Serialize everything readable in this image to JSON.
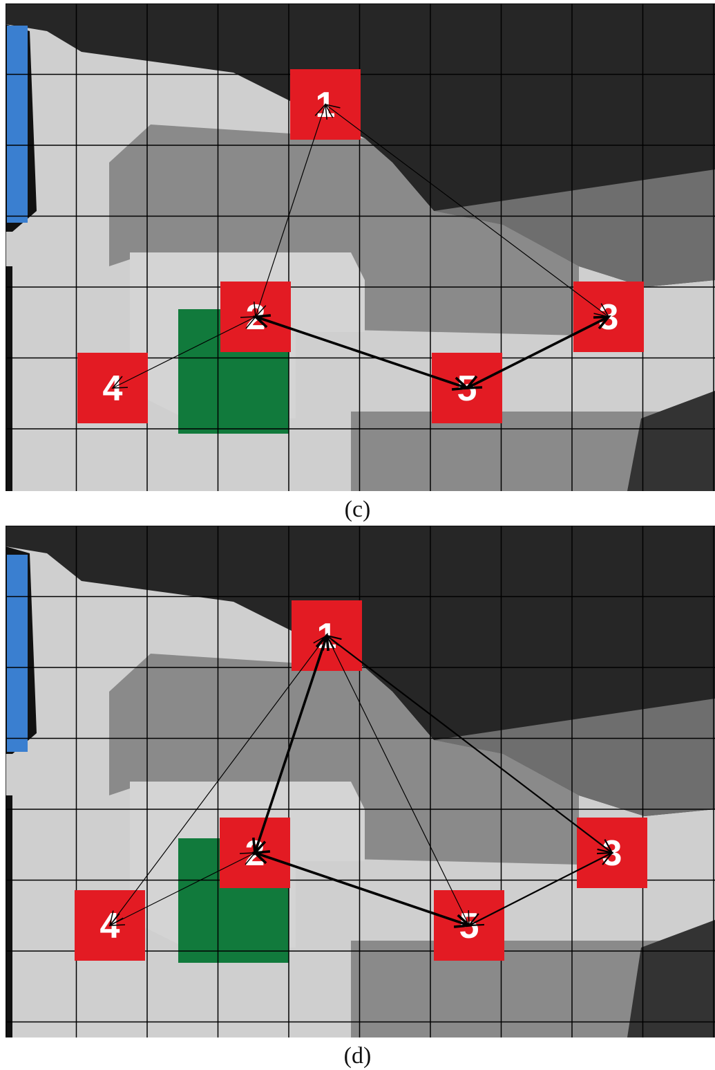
{
  "panels": [
    {
      "id": "c",
      "caption": "(c)",
      "nodes": [
        {
          "label": "1"
        },
        {
          "label": "2"
        },
        {
          "label": "3"
        },
        {
          "label": "4"
        },
        {
          "label": "5"
        }
      ],
      "edges": [
        {
          "from": "1",
          "to": "2",
          "bidirectional": true,
          "weight": "thin"
        },
        {
          "from": "1",
          "to": "3",
          "bidirectional": true,
          "weight": "thin"
        },
        {
          "from": "2",
          "to": "4",
          "bidirectional": true,
          "weight": "thin"
        },
        {
          "from": "2",
          "to": "5",
          "bidirectional": true,
          "weight": "thick"
        },
        {
          "from": "5",
          "to": "3",
          "bidirectional": true,
          "weight": "thick"
        }
      ]
    },
    {
      "id": "d",
      "caption": "(d)",
      "nodes": [
        {
          "label": "1"
        },
        {
          "label": "2"
        },
        {
          "label": "3"
        },
        {
          "label": "4"
        },
        {
          "label": "5"
        }
      ],
      "edges": [
        {
          "from": "1",
          "to": "2",
          "bidirectional": true,
          "weight": "thick"
        },
        {
          "from": "1",
          "to": "3",
          "bidirectional": true,
          "weight": "medium"
        },
        {
          "from": "1",
          "to": "4",
          "bidirectional": true,
          "weight": "thin"
        },
        {
          "from": "1",
          "to": "5",
          "bidirectional": true,
          "weight": "thin"
        },
        {
          "from": "2",
          "to": "4",
          "bidirectional": true,
          "weight": "thin"
        },
        {
          "from": "2",
          "to": "5",
          "bidirectional": true,
          "weight": "thick"
        },
        {
          "from": "5",
          "to": "3",
          "bidirectional": true,
          "weight": "medium"
        }
      ]
    }
  ],
  "colors": {
    "node_fill": "#e31b23",
    "node_text": "#ffffff",
    "grid_line": "#000000",
    "blue_region": "#3a7fd0",
    "green_region": "#117a3c",
    "light_region": "#cfcfcf",
    "mid_region": "#8a8a8a",
    "dark_region": "#262626"
  }
}
